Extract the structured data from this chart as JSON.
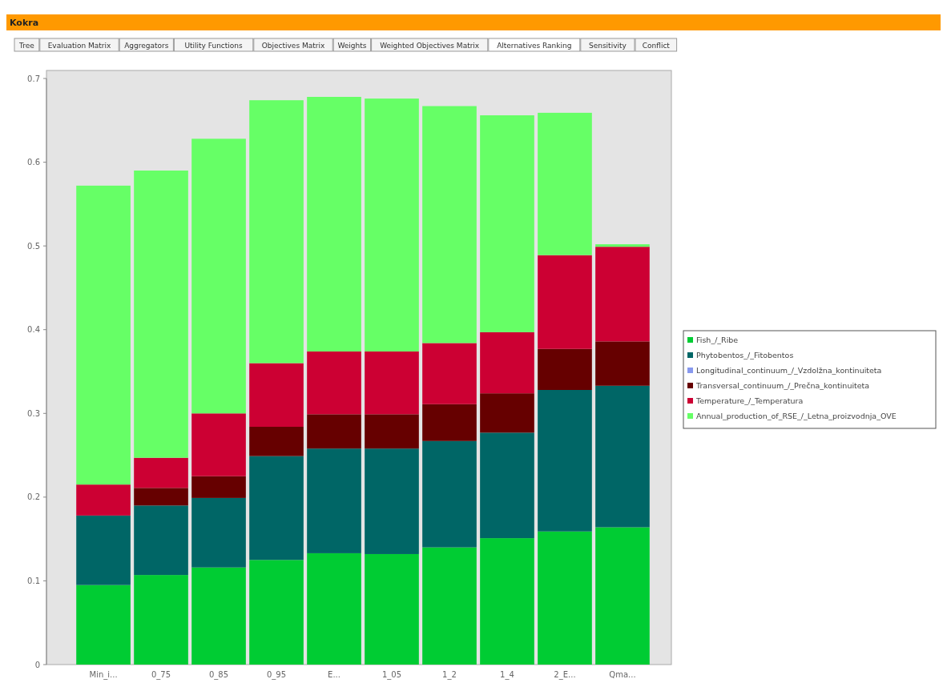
{
  "chart_data": {
    "type": "bar",
    "title": "Kokra",
    "annotations": [
      "Tree",
      "Evaluation Matrix",
      "Aggregators",
      "Utility Functions",
      "Objectives Matrix",
      "Weights",
      "Weighted Objectives Matrix",
      "Alternatives Ranking",
      "Sensitivity",
      "Conflict"
    ],
    "categories": [
      "Min_i...",
      "0_75",
      "0_85",
      "0_95",
      "E...",
      "1_05",
      "1_2",
      "1_4",
      "2_E...",
      "Qma..."
    ],
    "stacked": true,
    "series": [
      {
        "name": "Fish_/_Ribe",
        "color": "#00cc33",
        "values": [
          0.095,
          0.107,
          0.116,
          0.125,
          0.133,
          0.132,
          0.14,
          0.151,
          0.159,
          0.164
        ]
      },
      {
        "name": "Phytobentos_/_Fitobentos",
        "color": "#006666",
        "values": [
          0.083,
          0.083,
          0.083,
          0.124,
          0.125,
          0.126,
          0.127,
          0.126,
          0.169,
          0.169
        ]
      },
      {
        "name": "Longitudinal_continuum_/_Vzdolžna_kontinuiteta",
        "color": "#8899ee",
        "values": [
          0,
          0,
          0,
          0,
          0,
          0,
          0,
          0,
          0,
          0
        ]
      },
      {
        "name": "Transversal_continuum_/_Prečna_kontinuiteta",
        "color": "#660000",
        "values": [
          0,
          0.021,
          0.026,
          0.035,
          0.041,
          0.041,
          0.044,
          0.047,
          0.049,
          0.053
        ]
      },
      {
        "name": "Temperature_/_Temperatura",
        "color": "#cc0033",
        "values": [
          0.037,
          0.036,
          0.075,
          0.076,
          0.075,
          0.075,
          0.073,
          0.073,
          0.112,
          0.113
        ]
      },
      {
        "name": "Annual_production_of_RSE_/_Letna_proizvodnja_OVE",
        "color": "#66ff66",
        "values": [
          0.357,
          0.343,
          0.328,
          0.314,
          0.304,
          0.302,
          0.283,
          0.259,
          0.17,
          0.003
        ]
      }
    ],
    "ylim": [
      0,
      0.7
    ],
    "yticks": [
      0,
      0.1,
      0.2,
      0.3,
      0.4,
      0.5,
      0.6,
      0.7
    ],
    "legend": "right"
  }
}
